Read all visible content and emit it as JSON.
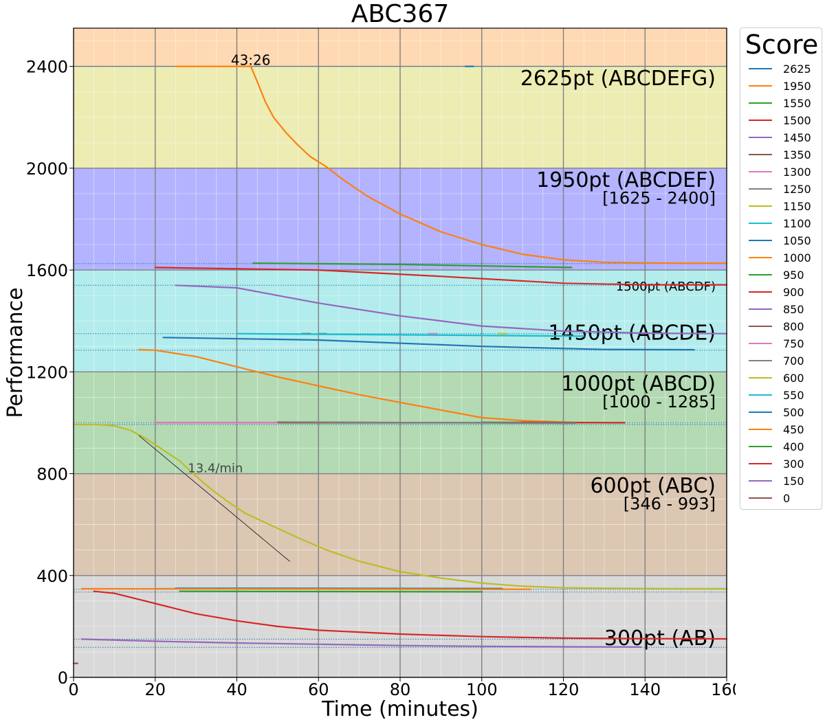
{
  "chart_data": {
    "type": "line",
    "title": "ABC367",
    "xlabel": "Time (minutes)",
    "ylabel": "Performance",
    "xlim": [
      0,
      160
    ],
    "ylim": [
      0,
      2550
    ],
    "x_ticks": [
      0,
      20,
      40,
      60,
      80,
      100,
      120,
      140,
      160
    ],
    "y_ticks": [
      0,
      400,
      800,
      1200,
      1600,
      2000,
      2400
    ],
    "grid": true,
    "legend_title": "Score",
    "legend_placement": "outside-right",
    "bands": [
      {
        "y0": 0,
        "y1": 400,
        "color": "#d9d9d9"
      },
      {
        "y0": 400,
        "y1": 800,
        "color": "#dcc7b3"
      },
      {
        "y0": 800,
        "y1": 1200,
        "color": "#b3dab3"
      },
      {
        "y0": 1200,
        "y1": 1600,
        "color": "#b3ecec"
      },
      {
        "y0": 1600,
        "y1": 2000,
        "color": "#b3b3ff"
      },
      {
        "y0": 2000,
        "y1": 2400,
        "color": "#ececb3"
      },
      {
        "y0": 2400,
        "y1": 2550,
        "color": "#ffd9b3"
      }
    ],
    "band_labels": [
      {
        "text": "2625pt (ABCDEFG)",
        "y": 2395,
        "size": 30
      },
      {
        "text": "1950pt (ABCDEF)",
        "y": 1995,
        "size": 30
      },
      {
        "text": "[1625 - 2400]",
        "y": 1915,
        "size": 24
      },
      {
        "text": "1500pt (ABCDF)",
        "y": 1560,
        "size": 18
      },
      {
        "text": "1450pt (ABCDE)",
        "y": 1395,
        "size": 30
      },
      {
        "text": "1000pt (ABCD)",
        "y": 1195,
        "size": 30
      },
      {
        "text": "[1000 - 1285]",
        "y": 1115,
        "size": 24
      },
      {
        "text": "600pt (ABC)",
        "y": 795,
        "size": 30
      },
      {
        "text": "[346 - 993]",
        "y": 715,
        "size": 24
      },
      {
        "text": "300pt (AB)",
        "y": 195,
        "size": 30
      }
    ],
    "annotations": [
      {
        "text": "43:26",
        "x": 43.4,
        "y": 2405
      },
      {
        "text": "13.4/min",
        "x": 28,
        "y": 805
      }
    ],
    "slope_line": {
      "x": [
        16,
        53
      ],
      "y": [
        950,
        455
      ]
    },
    "reference_lines": [
      2400,
      1625,
      1540,
      1350,
      1285,
      1000,
      993,
      346,
      335,
      150,
      118
    ],
    "legend": [
      "2625",
      "1950",
      "1550",
      "1500",
      "1450",
      "1350",
      "1300",
      "1250",
      "1150",
      "1100",
      "1050",
      "1000",
      "950",
      "900",
      "850",
      "800",
      "750",
      "700",
      "600",
      "550",
      "500",
      "450",
      "400",
      "300",
      "150",
      "0"
    ],
    "series": [
      {
        "name": "2625",
        "color": "#1f77b4",
        "x": [
          96,
          98
        ],
        "y": [
          2400,
          2400
        ]
      },
      {
        "name": "1950",
        "color": "#ff7f0e",
        "x": [
          25,
          43.4,
          45,
          47,
          49,
          52,
          55,
          58,
          62,
          66,
          72,
          80,
          90,
          100,
          110,
          120,
          130,
          140,
          150,
          160
        ],
        "y": [
          2400,
          2400,
          2340,
          2260,
          2200,
          2140,
          2090,
          2045,
          2005,
          1955,
          1890,
          1820,
          1750,
          1700,
          1662,
          1640,
          1630,
          1628,
          1627,
          1627
        ]
      },
      {
        "name": "1550",
        "color": "#2ca02c",
        "x": [
          44,
          80,
          122
        ],
        "y": [
          1627,
          1622,
          1610
        ]
      },
      {
        "name": "1500",
        "color": "#d62728",
        "x": [
          20,
          60,
          90,
          120,
          140,
          160
        ],
        "y": [
          1610,
          1600,
          1575,
          1548,
          1542,
          1542
        ]
      },
      {
        "name": "1450",
        "color": "#9467bd",
        "x": [
          25,
          40,
          60,
          80,
          100,
          120,
          140,
          160
        ],
        "y": [
          1540,
          1530,
          1470,
          1420,
          1380,
          1360,
          1352,
          1350
        ]
      },
      {
        "name": "1350",
        "color": "#8c564b",
        "x": [
          56,
          58
        ],
        "y": [
          1350,
          1350
        ]
      },
      {
        "name": "1300",
        "color": "#e377c2",
        "x": [
          87,
          89
        ],
        "y": [
          1350,
          1350
        ]
      },
      {
        "name": "1250",
        "color": "#7f7f7f",
        "x": [
          60,
          62
        ],
        "y": [
          1350,
          1350
        ]
      },
      {
        "name": "1150",
        "color": "#bcbd22",
        "x": [
          104,
          106
        ],
        "y": [
          1350,
          1350
        ]
      },
      {
        "name": "1100",
        "color": "#17becf",
        "x": [
          40,
          125
        ],
        "y": [
          1350,
          1340
        ]
      },
      {
        "name": "1050",
        "color": "#1f77b4",
        "x": [
          22,
          60,
          100,
          130,
          152
        ],
        "y": [
          1335,
          1325,
          1300,
          1288,
          1287
        ]
      },
      {
        "name": "1000",
        "color": "#ff7f0e",
        "x": [
          16,
          20,
          30,
          40,
          50,
          60,
          70,
          80,
          90,
          100,
          110,
          120,
          125
        ],
        "y": [
          1287,
          1285,
          1260,
          1220,
          1180,
          1145,
          1110,
          1080,
          1050,
          1020,
          1008,
          1003,
          1000
        ]
      },
      {
        "name": "950",
        "color": "#2ca02c",
        "x": [
          100,
          135
        ],
        "y": [
          1002,
          1000
        ]
      },
      {
        "name": "900",
        "color": "#d62728",
        "x": [
          110,
          135
        ],
        "y": [
          1002,
          1000
        ]
      },
      {
        "name": "850",
        "color": "#9467bd",
        "x": [
          20,
          123
        ],
        "y": [
          1000,
          1000
        ]
      },
      {
        "name": "800",
        "color": "#8c564b",
        "x": [
          20,
          123
        ],
        "y": [
          1000,
          1000
        ]
      },
      {
        "name": "750",
        "color": "#e377c2",
        "x": [
          20,
          50
        ],
        "y": [
          1000,
          1000
        ]
      },
      {
        "name": "700",
        "color": "#7f7f7f",
        "x": [
          50,
          123
        ],
        "y": [
          1003,
          998
        ]
      },
      {
        "name": "600",
        "color": "#bcbd22",
        "x": [
          0,
          6,
          10,
          14,
          18,
          22,
          26,
          30,
          34,
          38,
          42,
          48,
          55,
          62,
          70,
          80,
          90,
          100,
          110,
          120,
          130,
          140,
          150,
          160
        ],
        "y": [
          993,
          993,
          988,
          970,
          935,
          893,
          850,
          790,
          735,
          688,
          645,
          600,
          548,
          500,
          456,
          415,
          390,
          370,
          358,
          352,
          350,
          349,
          348,
          348
        ]
      },
      {
        "name": "550",
        "color": "#17becf",
        "x": [
          20,
          100
        ],
        "y": [
          348,
          348
        ]
      },
      {
        "name": "500",
        "color": "#1f77b4",
        "x": [
          25,
          105
        ],
        "y": [
          350,
          349
        ]
      },
      {
        "name": "450",
        "color": "#ff7f0e",
        "x": [
          2,
          112
        ],
        "y": [
          348,
          346
        ]
      },
      {
        "name": "400",
        "color": "#2ca02c",
        "x": [
          26,
          100
        ],
        "y": [
          338,
          336
        ]
      },
      {
        "name": "300",
        "color": "#d62728",
        "x": [
          5,
          10,
          15,
          20,
          30,
          40,
          50,
          60,
          80,
          100,
          120,
          140,
          160
        ],
        "y": [
          338,
          330,
          310,
          290,
          250,
          222,
          200,
          185,
          170,
          160,
          154,
          152,
          151
        ]
      },
      {
        "name": "150",
        "color": "#9467bd",
        "x": [
          2,
          20,
          40,
          60,
          80,
          100,
          120,
          139
        ],
        "y": [
          150,
          142,
          135,
          130,
          125,
          122,
          120,
          119
        ]
      },
      {
        "name": "0",
        "color": "#8c564b",
        "x": [
          0,
          1
        ],
        "y": [
          55,
          55
        ]
      }
    ]
  }
}
